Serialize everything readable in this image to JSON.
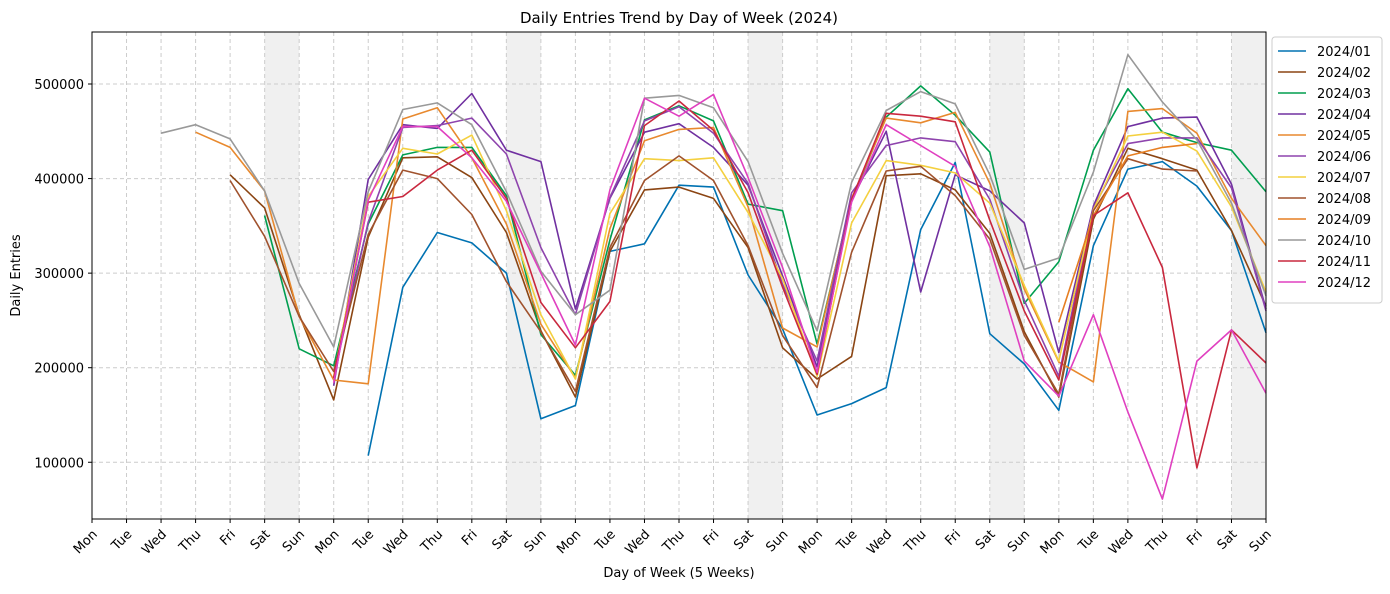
{
  "chart_data": {
    "type": "line",
    "title": "Daily Entries Trend by Day of Week (2024)",
    "xlabel": "Day of Week (5 Weeks)",
    "ylabel": "Daily Entries",
    "x_tick_labels": [
      "Mon",
      "Tue",
      "Wed",
      "Thu",
      "Fri",
      "Sat",
      "Sun",
      "Mon",
      "Tue",
      "Wed",
      "Thu",
      "Fri",
      "Sat",
      "Sun",
      "Mon",
      "Tue",
      "Wed",
      "Thu",
      "Fri",
      "Sat",
      "Sun",
      "Mon",
      "Tue",
      "Wed",
      "Thu",
      "Fri",
      "Sat",
      "Sun",
      "Mon",
      "Tue",
      "Wed",
      "Thu",
      "Fri",
      "Sat",
      "Sun"
    ],
    "y_ticks": [
      100000,
      200000,
      300000,
      400000,
      500000
    ],
    "xlim": [
      0,
      34
    ],
    "ylim": [
      40000,
      555000
    ],
    "weekend_shading": [
      [
        5,
        6
      ],
      [
        12,
        13
      ],
      [
        19,
        20
      ],
      [
        26,
        27
      ],
      [
        33,
        34
      ]
    ],
    "grid": true,
    "legend_position": "outside upper right",
    "series": [
      {
        "name": "2024/01",
        "color": "#0072B2",
        "values": [
          null,
          null,
          null,
          null,
          null,
          null,
          null,
          null,
          107000,
          285000,
          343000,
          332000,
          300000,
          146000,
          160000,
          323000,
          331000,
          393000,
          391000,
          298000,
          241000,
          150000,
          162000,
          179000,
          346000,
          417000,
          236000,
          204000,
          155000,
          329000,
          410000,
          418000,
          392000,
          345000,
          237000
        ]
      },
      {
        "name": "2024/02",
        "color": "#8B4513",
        "values": [
          null,
          null,
          null,
          null,
          404000,
          369000,
          256000,
          166000,
          338000,
          422000,
          423000,
          401000,
          343000,
          239000,
          169000,
          323000,
          388000,
          391000,
          379000,
          327000,
          221000,
          188000,
          212000,
          403000,
          405000,
          388000,
          342000,
          238000,
          169000,
          357000,
          432000,
          421000,
          409000,
          345000,
          265000
        ]
      },
      {
        "name": "2024/03",
        "color": "#009E4F",
        "values": [
          null,
          null,
          null,
          null,
          null,
          361000,
          220000,
          202000,
          352000,
          425000,
          433000,
          433000,
          382000,
          235000,
          192000,
          335000,
          462000,
          477000,
          461000,
          373000,
          366000,
          225000,
          377000,
          465000,
          498000,
          467000,
          428000,
          268000,
          312000,
          430000,
          495000,
          449000,
          438000,
          430000,
          386000
        ]
      },
      {
        "name": "2024/04",
        "color": "#7030A0",
        "values": [
          null,
          null,
          null,
          null,
          null,
          null,
          null,
          181000,
          399000,
          457000,
          453000,
          490000,
          430000,
          418000,
          262000,
          379000,
          449000,
          458000,
          433000,
          393000,
          297000,
          201000,
          377000,
          450000,
          280000,
          404000,
          387000,
          353000,
          216000,
          371000,
          455000,
          464000,
          465000,
          394000,
          262000
        ]
      },
      {
        "name": "2024/05",
        "color": "#E8892E",
        "values": [
          null,
          null,
          null,
          449000,
          433000,
          387000,
          254000,
          187000,
          183000,
          463000,
          475000,
          422000,
          352000,
          246000,
          189000,
          347000,
          440000,
          452000,
          454000,
          370000,
          242000,
          222000,
          379000,
          464000,
          459000,
          470000,
          395000,
          283000,
          206000,
          185000,
          471000,
          474000,
          448000,
          379000,
          329000
        ]
      },
      {
        "name": "2024/06",
        "color": "#8E44AD",
        "values": [
          null,
          null,
          null,
          null,
          null,
          null,
          null,
          190000,
          354000,
          454000,
          456000,
          464000,
          426000,
          327000,
          256000,
          380000,
          461000,
          476000,
          448000,
          395000,
          288000,
          207000,
          385000,
          435000,
          443000,
          439000,
          378000,
          271000,
          191000,
          369000,
          437000,
          443000,
          443000,
          390000,
          260000
        ]
      },
      {
        "name": "2024/07",
        "color": "#F4D03F",
        "values": [
          null,
          null,
          null,
          null,
          null,
          null,
          null,
          191000,
          381000,
          432000,
          426000,
          446000,
          366000,
          256000,
          188000,
          363000,
          421000,
          419000,
          422000,
          364000,
          294000,
          191000,
          353000,
          419000,
          414000,
          406000,
          374000,
          287000,
          207000,
          367000,
          445000,
          449000,
          429000,
          370000,
          280000
        ]
      },
      {
        "name": "2024/08",
        "color": "#A0522D",
        "values": [
          null,
          null,
          null,
          null,
          398000,
          339000,
          254000,
          196000,
          341000,
          409000,
          400000,
          362000,
          291000,
          238000,
          175000,
          327000,
          398000,
          424000,
          398000,
          329000,
          234000,
          179000,
          322000,
          408000,
          413000,
          382000,
          336000,
          234000,
          172000,
          366000,
          421000,
          410000,
          408000,
          null,
          null
        ]
      },
      {
        "name": "2024/09",
        "color": "#E67E22",
        "values": [
          null,
          null,
          null,
          null,
          null,
          null,
          null,
          null,
          null,
          null,
          null,
          null,
          null,
          null,
          null,
          null,
          null,
          null,
          null,
          null,
          null,
          null,
          null,
          null,
          null,
          null,
          null,
          null,
          248000,
          361000,
          424000,
          433000,
          437000,
          null,
          null
        ]
      },
      {
        "name": "2024/10",
        "color": "#999999",
        "values": [
          null,
          null,
          448000,
          457000,
          442000,
          387000,
          289000,
          222000,
          386000,
          473000,
          480000,
          457000,
          386000,
          302000,
          256000,
          282000,
          485000,
          488000,
          475000,
          418000,
          321000,
          239000,
          396000,
          472000,
          492000,
          479000,
          404000,
          304000,
          316000,
          407000,
          531000,
          481000,
          441000,
          374000,
          276000
        ]
      },
      {
        "name": "2024/11",
        "color": "#C9283E",
        "values": [
          null,
          null,
          null,
          null,
          null,
          null,
          null,
          189000,
          375000,
          381000,
          409000,
          430000,
          379000,
          269000,
          221000,
          270000,
          456000,
          482000,
          451000,
          385000,
          285000,
          193000,
          378000,
          469000,
          466000,
          460000,
          356000,
          260000,
          187000,
          361000,
          385000,
          306000,
          94000,
          240000,
          205000
        ]
      },
      {
        "name": "2024/12",
        "color": "#E040C0",
        "values": [
          null,
          null,
          null,
          null,
          null,
          null,
          null,
          184000,
          377000,
          455000,
          455000,
          422000,
          376000,
          300000,
          224000,
          388000,
          485000,
          466000,
          489000,
          401000,
          306000,
          195000,
          375000,
          457000,
          435000,
          413000,
          328000,
          207000,
          170000,
          256000,
          153000,
          61000,
          207000,
          240000,
          173000
        ]
      }
    ]
  }
}
